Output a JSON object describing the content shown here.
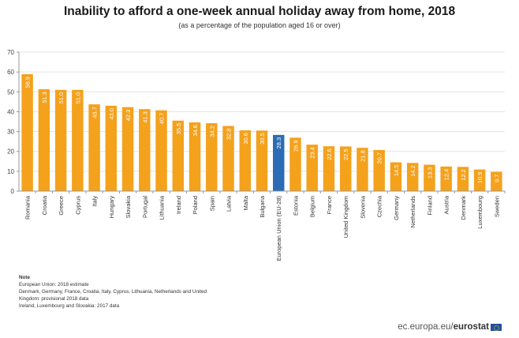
{
  "chart_data": {
    "type": "bar",
    "title": "Inability to afford a one-week annual holiday away from home, 2018",
    "subtitle": "(as a percentage of the population aged 16 or over)",
    "xlabel": "",
    "ylabel": "",
    "ylim": [
      0,
      70
    ],
    "yticks": [
      0,
      10,
      20,
      30,
      40,
      50,
      60,
      70
    ],
    "grid": true,
    "legend": "none",
    "colors": {
      "default": "#f4a11c",
      "highlight": "#2b6cb5",
      "label": "#ffffff"
    },
    "highlight": "European Union (EU-28)",
    "categories": [
      "Romania",
      "Croatia",
      "Greece",
      "Cyprus",
      "Italy",
      "Hungary",
      "Slovakia",
      "Portugal",
      "Lithuania",
      "Ireland",
      "Poland",
      "Spain",
      "Latvia",
      "Malta",
      "Bulgaria",
      "European Union (EU-28)",
      "Estonia",
      "Belgium",
      "France",
      "United Kingdom",
      "Slovenia",
      "Czechia",
      "Germany",
      "Netherlands",
      "Finland",
      "Austria",
      "Denmark",
      "Luxembourg",
      "Sweden"
    ],
    "values": [
      58.9,
      51.3,
      51.0,
      51.0,
      43.7,
      43.0,
      42.3,
      41.3,
      40.7,
      35.5,
      34.6,
      34.2,
      32.8,
      30.6,
      30.5,
      28.3,
      26.9,
      23.4,
      22.6,
      22.5,
      21.8,
      20.7,
      14.5,
      14.2,
      13.3,
      12.4,
      12.2,
      10.9,
      9.7
    ],
    "data_labels": [
      "58.9",
      "51.3",
      "51.0",
      "51.0",
      "43.7",
      "43.0",
      "42.3",
      "41.3",
      "40.7",
      "35.5",
      "34.6",
      "34.2",
      "32.8",
      "30.6",
      "30.5",
      "28.3",
      "26.9",
      "23.4",
      "22.6",
      "22.5",
      "21.8",
      "20.7",
      "14.5",
      "14.2",
      "13.3",
      "12.4",
      "12.2",
      "10.9",
      "9.7"
    ]
  },
  "note": {
    "heading": "Note",
    "lines": [
      "European Union: 2018 estimate",
      "Denmark, Germany, France, Croatia, Italy, Cyprus, Lithuania, Netherlands and United",
      "Kingdom: provisional 2018 data",
      "Ireland, Luxembourg and Slovakia: 2017 data"
    ]
  },
  "footer": {
    "site": "ec.europa.eu/",
    "brand": "eurostat",
    "flag_icon": "eu-flag-icon"
  }
}
